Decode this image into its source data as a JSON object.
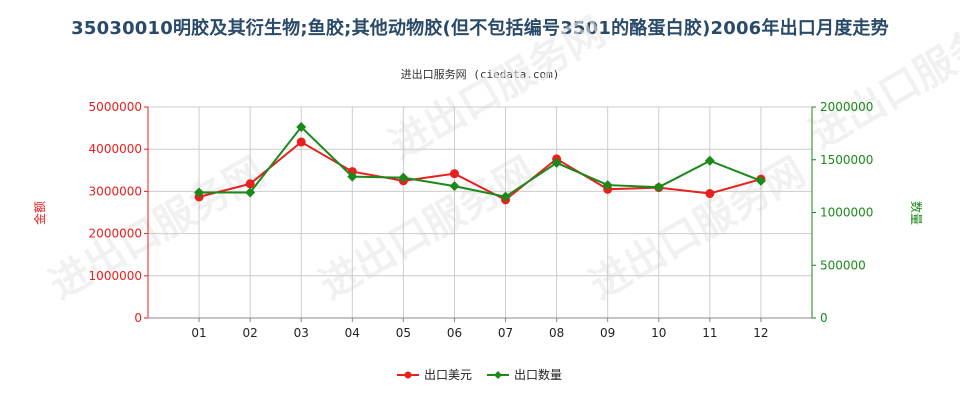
{
  "chart_data": {
    "type": "line",
    "title": "35030010明胶及其衍生物;鱼胶;其他动物胶(但不包括编号3501的酪蛋白胶)2006年出口月度走势",
    "subtitle": "进出口服务网 (ciedata.com)",
    "categories": [
      "01",
      "02",
      "03",
      "04",
      "05",
      "06",
      "07",
      "08",
      "09",
      "10",
      "11",
      "12"
    ],
    "ylabel_left": "金额",
    "ylabel_right": "数量",
    "ylim_left": [
      0,
      5000000
    ],
    "ylim_right": [
      0,
      2000000
    ],
    "yticks_left": [
      "0",
      "1000000",
      "2000000",
      "3000000",
      "4000000",
      "5000000"
    ],
    "yticks_right": [
      "0",
      "500000",
      "1000000",
      "1500000",
      "2000000"
    ],
    "grid": true,
    "legend_position": "bottom-center",
    "series": [
      {
        "name": "出口美元",
        "axis": "left",
        "color": "#e8201e",
        "values": [
          2870000,
          3180000,
          4170000,
          3470000,
          3250000,
          3420000,
          2800000,
          3770000,
          3050000,
          3090000,
          2950000,
          3290000
        ]
      },
      {
        "name": "出口数量",
        "axis": "right",
        "color": "#1a8a1a",
        "values": [
          1190000,
          1190000,
          1810000,
          1340000,
          1330000,
          1250000,
          1150000,
          1470000,
          1260000,
          1240000,
          1490000,
          1300000
        ]
      }
    ]
  },
  "watermark": "进出口服务网",
  "colors": {
    "left_axis": "#e8201e",
    "right_axis": "#1a8a1a",
    "title": "#2a4a6a",
    "grid": "#cccccc"
  }
}
